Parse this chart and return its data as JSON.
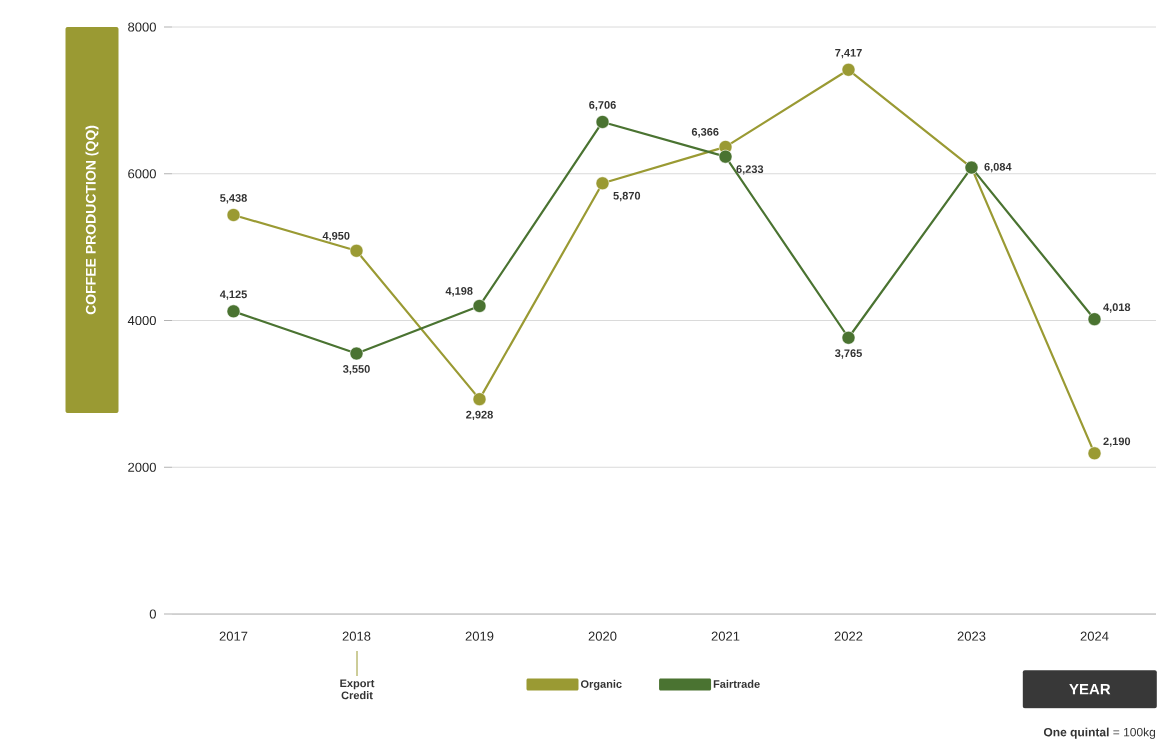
{
  "chart_data": {
    "type": "line",
    "ylabel": "COFFEE PRODUCTION (QQ)",
    "xlabel": "YEAR",
    "categories": [
      "2017",
      "2018",
      "2019",
      "2020",
      "2021",
      "2022",
      "2023",
      "2024"
    ],
    "series": [
      {
        "name": "Organic",
        "color": "#9a9a33",
        "values": [
          5438,
          4950,
          2928,
          5870,
          6366,
          7417,
          6084,
          2190
        ],
        "value_labels": [
          "5,438",
          "4,950",
          "2,928",
          "5,870",
          "6,366",
          "7,417",
          null,
          "2,190"
        ]
      },
      {
        "name": "Fairtrade",
        "color": "#4a7331",
        "values": [
          4125,
          3550,
          4198,
          6706,
          6233,
          3765,
          6084,
          4018
        ],
        "value_labels": [
          "4,125",
          "3,550",
          "4,198",
          "6,706",
          "6,233",
          "3,765",
          "6,084",
          "4,018"
        ]
      }
    ],
    "ylim": [
      0,
      8000
    ],
    "yticks": [
      0,
      2000,
      4000,
      6000,
      8000
    ],
    "grid": "y",
    "legend": "bottom",
    "marker": "circle",
    "line_style": "solid",
    "annotations": [
      "Export Credit",
      "**One quintal** = 100kg"
    ]
  }
}
